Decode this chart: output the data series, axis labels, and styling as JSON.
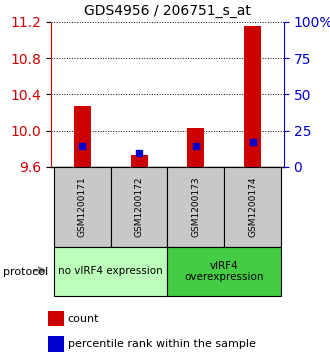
{
  "title": "GDS4956 / 206751_s_at",
  "samples": [
    "GSM1200171",
    "GSM1200172",
    "GSM1200173",
    "GSM1200174"
  ],
  "bar_bottoms": [
    9.6,
    9.6,
    9.6,
    9.6
  ],
  "bar_tops": [
    10.27,
    9.73,
    10.03,
    11.15
  ],
  "bar_color": "#cc0000",
  "percentile_values": [
    9.83,
    9.75,
    9.83,
    9.87
  ],
  "percentile_color": "#0000cc",
  "ylim": [
    9.6,
    11.2
  ],
  "yticks_left": [
    9.6,
    10.0,
    10.4,
    10.8,
    11.2
  ],
  "yticks_right": [
    0,
    25,
    50,
    75,
    100
  ],
  "ylabel_right_labels": [
    "0",
    "25",
    "50",
    "75",
    "100%"
  ],
  "right_axis_color": "#0000cc",
  "left_axis_color": "#cc0000",
  "groups": [
    {
      "label": "no vIRF4 expression",
      "samples": [
        0,
        1
      ],
      "color": "#bbffbb"
    },
    {
      "label": "vIRF4\noverexpression",
      "samples": [
        2,
        3
      ],
      "color": "#44cc44"
    }
  ],
  "protocol_label": "protocol",
  "legend_count_label": "count",
  "legend_percentile_label": "percentile rank within the sample",
  "bar_width": 0.3,
  "grid_linestyle": ":"
}
